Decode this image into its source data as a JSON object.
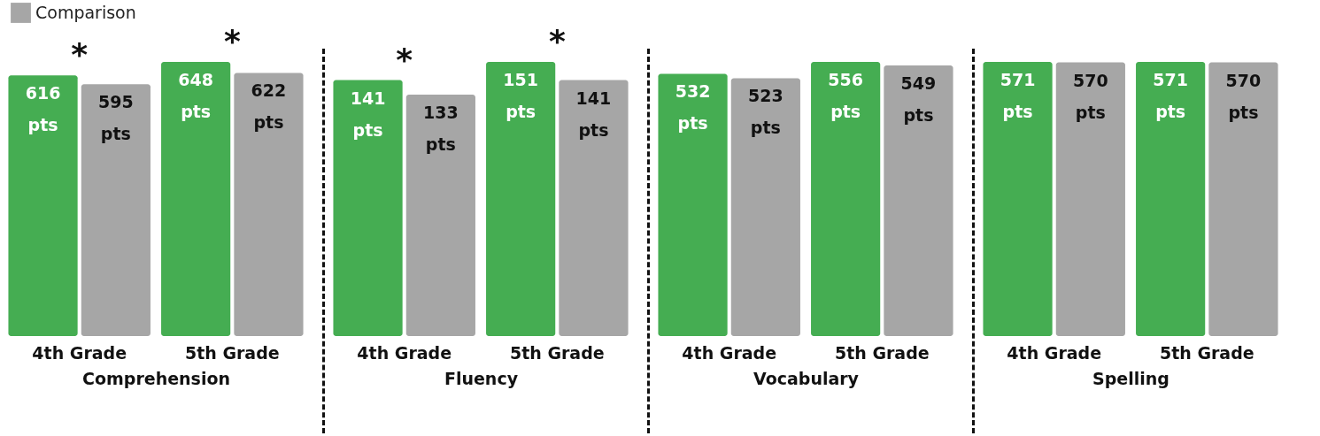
{
  "chart_data": [
    {
      "type": "bar",
      "xlabel": "Comprehension",
      "categories": [
        "4th Grade",
        "5th Grade"
      ],
      "tick_labels": "x",
      "legend": "top left",
      "series": [
        {
          "color": "#45ad52",
          "values": [
            616,
            648
          ],
          "value_labels": [
            "616 pts",
            "648 pts"
          ]
        },
        {
          "name": "Comparison",
          "color": "#a6a6a6",
          "values": [
            595,
            622
          ],
          "value_labels": [
            "595 pts",
            "622 pts"
          ]
        }
      ],
      "annotations": [
        {
          "text": "*",
          "x": "4th Grade",
          "y": 616
        },
        {
          "text": "*",
          "x": "5th Grade",
          "y": 648
        }
      ]
    },
    {
      "type": "bar",
      "xlabel": "Fluency",
      "categories": [
        "4th Grade",
        "5th Grade"
      ],
      "tick_labels": "x",
      "series": [
        {
          "color": "#45ad52",
          "values": [
            141,
            151
          ],
          "value_labels": [
            "141 pts",
            "151 pts"
          ]
        },
        {
          "color": "#a6a6a6",
          "values": [
            133,
            141
          ],
          "value_labels": [
            "133 pts",
            "141 pts"
          ]
        }
      ],
      "annotations": [
        {
          "text": "*",
          "x": "4th Grade",
          "y": 141
        },
        {
          "text": "*",
          "x": "5th Grade",
          "y": 151
        }
      ]
    },
    {
      "type": "bar",
      "xlabel": "Vocabulary",
      "categories": [
        "4th Grade",
        "5th Grade"
      ],
      "tick_labels": "x",
      "series": [
        {
          "color": "#45ad52",
          "values": [
            532,
            556
          ],
          "value_labels": [
            "532 pts",
            "556 pts"
          ]
        },
        {
          "color": "#a6a6a6",
          "values": [
            523,
            549
          ],
          "value_labels": [
            "523 pts",
            "549 pts"
          ]
        }
      ]
    },
    {
      "type": "bar",
      "xlabel": "Spelling",
      "categories": [
        "4th Grade",
        "5th Grade"
      ],
      "tick_labels": "x",
      "series": [
        {
          "color": "#45ad52",
          "values": [
            571,
            571
          ],
          "value_labels": [
            "571 pts",
            "571 pts"
          ]
        },
        {
          "color": "#a6a6a6",
          "values": [
            570,
            570
          ],
          "value_labels": [
            "570 pts",
            "570 pts"
          ]
        }
      ]
    }
  ]
}
